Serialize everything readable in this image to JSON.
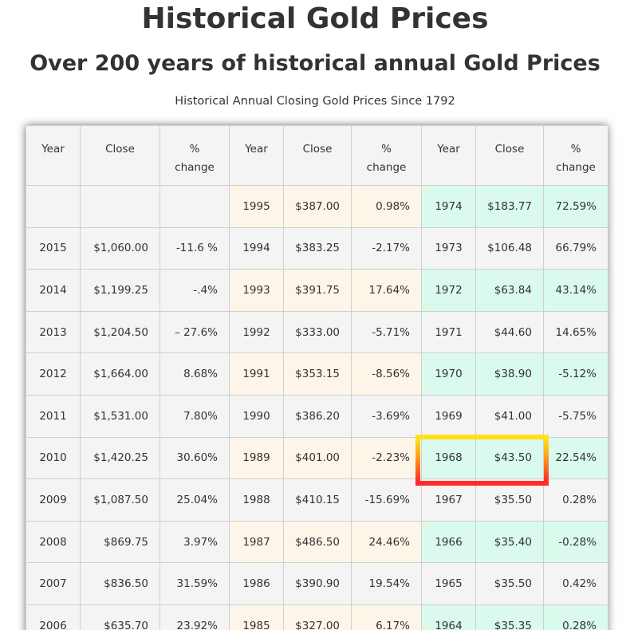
{
  "title": "Historical Gold Prices",
  "subtitle": "Over 200 years of historical annual Gold Prices",
  "caption": "Historical Annual Closing Gold Prices Since 1792",
  "table": {
    "headers": [
      "Year",
      "Close",
      "% change",
      "Year",
      "Close",
      "% change",
      "Year",
      "Close",
      "% change"
    ],
    "rows": [
      [
        "",
        "",
        "",
        "1995",
        "$387.00",
        "0.98%",
        "1974",
        "$183.77",
        "72.59%"
      ],
      [
        "2015",
        "$1,060.00",
        "-11.6 %",
        "1994",
        "$383.25",
        "-2.17%",
        "1973",
        "$106.48",
        "66.79%"
      ],
      [
        "2014",
        "$1,199.25",
        "-.4%",
        "1993",
        "$391.75",
        "17.64%",
        "1972",
        "$63.84",
        "43.14%"
      ],
      [
        "2013",
        "$1,204.50",
        "– 27.6%",
        "1992",
        "$333.00",
        "-5.71%",
        "1971",
        "$44.60",
        "14.65%"
      ],
      [
        "2012",
        "$1,664.00",
        "8.68%",
        "1991",
        "$353.15",
        "-8.56%",
        "1970",
        "$38.90",
        "-5.12%"
      ],
      [
        "2011",
        "$1,531.00",
        "7.80%",
        "1990",
        "$386.20",
        "-3.69%",
        "1969",
        "$41.00",
        "-5.75%"
      ],
      [
        "2010",
        "$1,420.25",
        "30.60%",
        "1989",
        "$401.00",
        "-2.23%",
        "1968",
        "$43.50",
        "22.54%"
      ],
      [
        "2009",
        "$1,087.50",
        "25.04%",
        "1988",
        "$410.15",
        "-15.69%",
        "1967",
        "$35.50",
        "0.28%"
      ],
      [
        "2008",
        "$869.75",
        "3.97%",
        "1987",
        "$486.50",
        "24.46%",
        "1966",
        "$35.40",
        "-0.28%"
      ],
      [
        "2007",
        "$836.50",
        "31.59%",
        "1986",
        "$390.90",
        "19.54%",
        "1965",
        "$35.50",
        "0.42%"
      ],
      [
        "2006",
        "$635.70",
        "23.92%",
        "1985",
        "$327.00",
        "6.17%",
        "1964",
        "$35.35",
        "0.28%"
      ]
    ],
    "highlighted": {
      "year": "1968",
      "close": "$43.50"
    }
  },
  "colors": {
    "group1_bg": "#f4f4f4",
    "group2_bg": "#fdf6e8",
    "group3_bg": "#d9faec",
    "highlight_top": "#ffe21a",
    "highlight_bottom": "#ff2a2a"
  }
}
